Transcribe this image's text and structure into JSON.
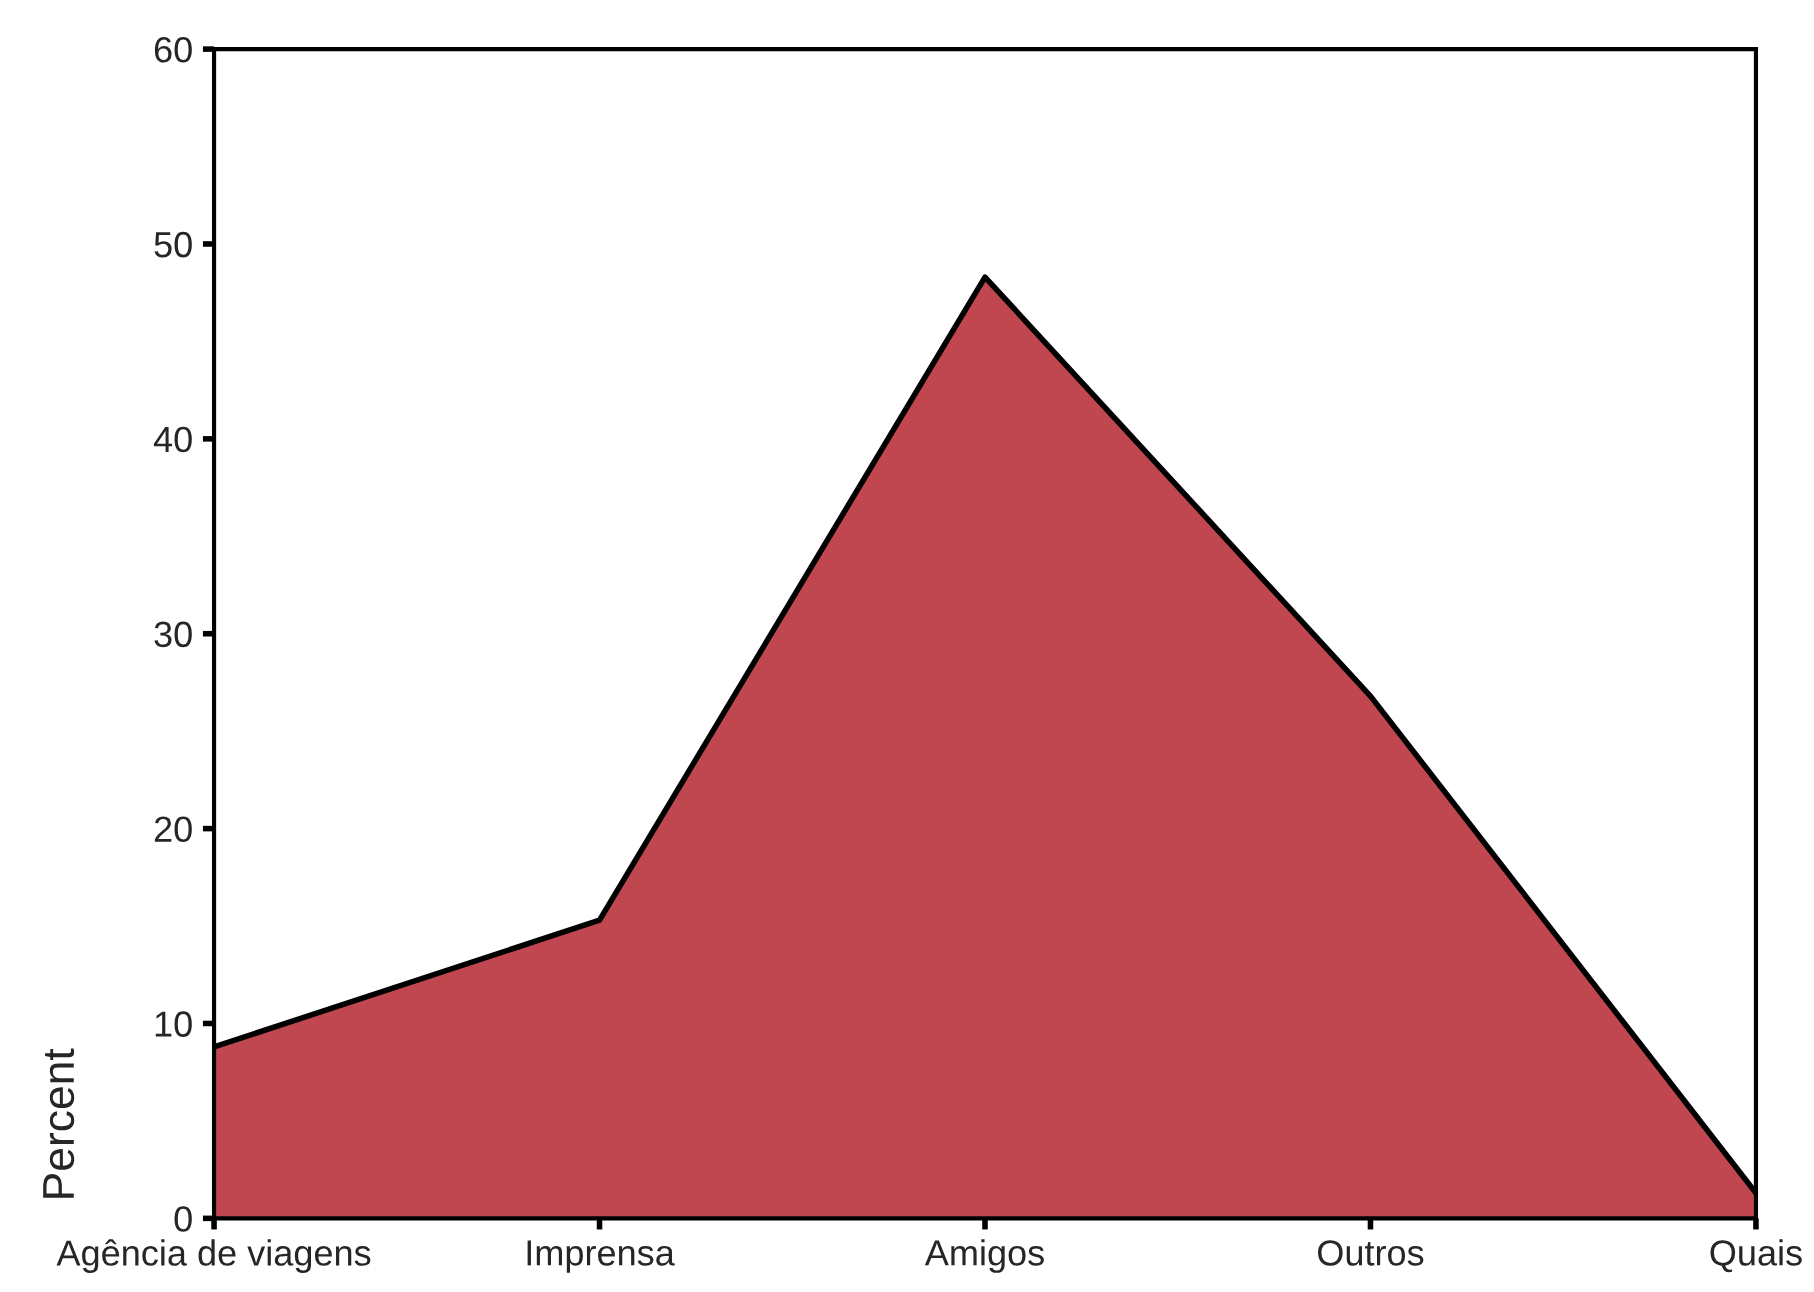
{
  "chart_data": {
    "type": "area",
    "ylabel": "Percent",
    "categories": [
      "Agência de viagens",
      "Imprensa",
      "Amigos",
      "Outros",
      "Quais"
    ],
    "series": [
      {
        "color": "#c0474f",
        "values": [
          8.8,
          15.3,
          48.3,
          26.8,
          1.3
        ]
      }
    ],
    "ylim": [
      0,
      60
    ],
    "yticks": [
      0,
      10,
      20,
      30,
      40,
      50,
      60
    ],
    "grid": false,
    "legend": false
  }
}
